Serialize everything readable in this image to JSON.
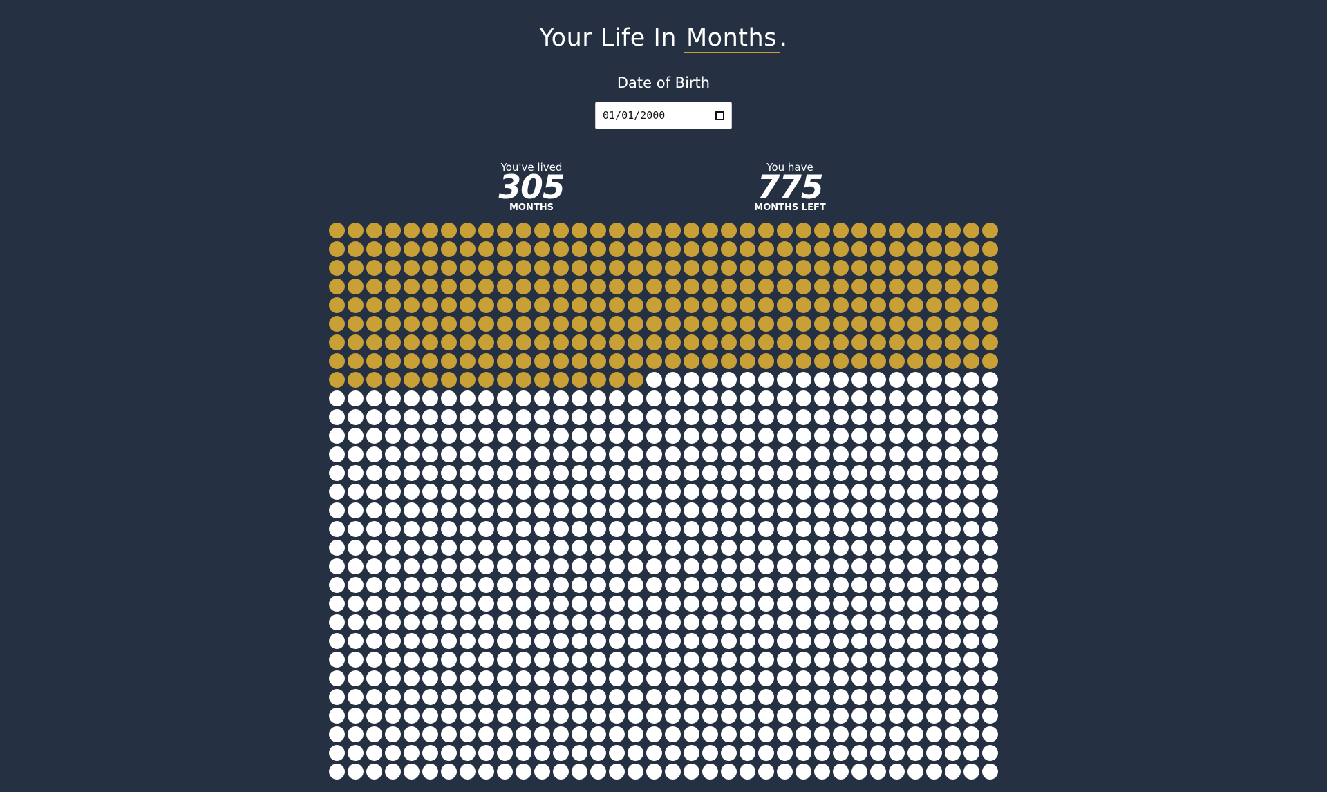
{
  "header": {
    "title_prefix": "Your Life In",
    "unit": "Months",
    "title_suffix": "."
  },
  "dob": {
    "label": "Date of Birth",
    "value": "01/01/2000"
  },
  "stats": {
    "lived": {
      "pre": "You've lived",
      "number": "305",
      "post": "MONTHS"
    },
    "left": {
      "pre": "You have",
      "number": "775",
      "post": "MONTHS LEFT"
    }
  },
  "grid": {
    "columns": 36,
    "visible_rows": 30,
    "lived_count": 305,
    "colors": {
      "lived": "#c9a035",
      "remaining": "#ffffff",
      "background": "#253142"
    }
  }
}
